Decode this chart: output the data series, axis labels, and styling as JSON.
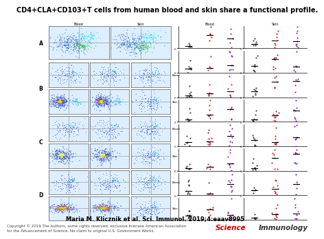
{
  "title": "CD4+CLA+CD103+T cells from human blood and skin share a functional profile.",
  "title_fontsize": 7.0,
  "title_bold": true,
  "citation": "Maria M. Klicznik et al. Sci. Immunol. 2019;4:eaav8995",
  "citation_fontsize": 6.0,
  "copyright_text": "Copyright © 2019 The Authors, some rights reserved; exclusive licensee American Association\nfor the Advancement of Science. No claim to original U.S. Government Works.",
  "copyright_fontsize": 4.0,
  "journal_science": "Science",
  "journal_immunology": "Immunology",
  "journal_fontsize": 7.5,
  "background_color": "#ffffff",
  "panel_bg": "#f5f5f5",
  "flow_bg": "#ddeeff",
  "section_labels": [
    "A",
    "B",
    "C",
    "D"
  ],
  "blood_label": "Blood",
  "skin_label": "Skin"
}
